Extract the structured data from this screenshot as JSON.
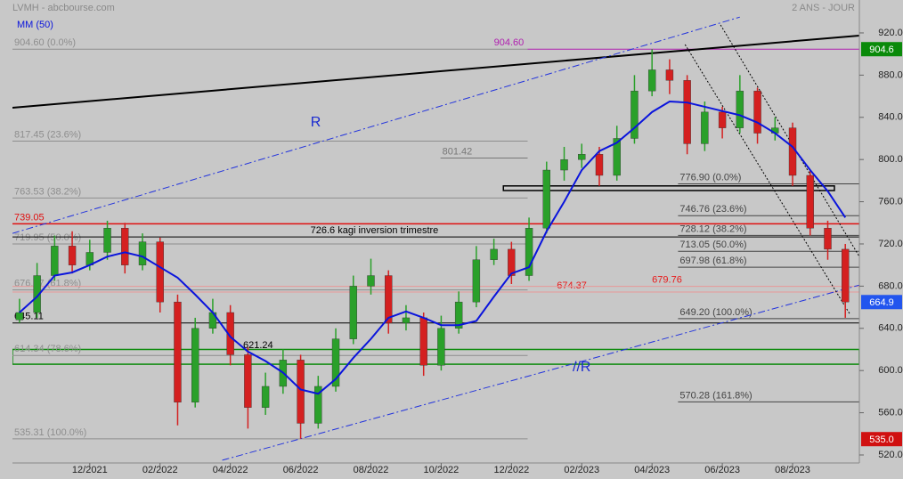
{
  "chart_data": {
    "type": "candlestick",
    "title": "LVMH - abcbourse.com",
    "subtitle": "2 ANS - JOUR",
    "xlim": [
      0,
      24.1
    ],
    "ylim": [
      512.4,
      951.2
    ],
    "xticks": [
      {
        "value": 2.2,
        "label": "12/2021"
      },
      {
        "value": 4.2,
        "label": "02/2022"
      },
      {
        "value": 6.2,
        "label": "04/2022"
      },
      {
        "value": 8.2,
        "label": "06/2022"
      },
      {
        "value": 10.2,
        "label": "08/2022"
      },
      {
        "value": 12.2,
        "label": "10/2022"
      },
      {
        "value": 14.2,
        "label": "12/2022"
      },
      {
        "value": 16.2,
        "label": "02/2023"
      },
      {
        "value": 18.2,
        "label": "04/2023"
      },
      {
        "value": 20.2,
        "label": "06/2023"
      },
      {
        "value": 22.2,
        "label": "08/2023"
      }
    ],
    "yticks": [
      {
        "value": 520,
        "label": "520.0"
      },
      {
        "value": 560,
        "label": "560.0"
      },
      {
        "value": 600,
        "label": "600.0"
      },
      {
        "value": 640,
        "label": "640.0"
      },
      {
        "value": 680,
        "label": "680.0"
      },
      {
        "value": 720,
        "label": "720.0"
      },
      {
        "value": 760,
        "label": "760.0"
      },
      {
        "value": 800,
        "label": "800.0"
      },
      {
        "value": 840,
        "label": "840.0"
      },
      {
        "value": 880,
        "label": "880.0"
      },
      {
        "value": 920,
        "label": "920.0"
      }
    ],
    "candles": {
      "up_color": "#2aa02a",
      "down_color": "#d42020",
      "x": [
        0.2,
        0.7,
        1.2,
        1.7,
        2.2,
        2.7,
        3.2,
        3.7,
        4.2,
        4.7,
        5.2,
        5.7,
        6.2,
        6.7,
        7.2,
        7.7,
        8.2,
        8.7,
        9.2,
        9.7,
        10.2,
        10.7,
        11.2,
        11.7,
        12.2,
        12.7,
        13.2,
        13.7,
        14.2,
        14.7,
        15.2,
        15.7,
        16.2,
        16.7,
        17.2,
        17.7,
        18.2,
        18.7,
        19.2,
        19.7,
        20.2,
        20.7,
        21.2,
        21.7,
        22.2,
        22.7,
        23.2,
        23.7
      ],
      "open": [
        648,
        655,
        690,
        718,
        700,
        712,
        735,
        700,
        722,
        665,
        570,
        640,
        655,
        615,
        565,
        585,
        610,
        550,
        585,
        630,
        680,
        690,
        645,
        650,
        605,
        640,
        665,
        705,
        715,
        690,
        735,
        790,
        800,
        805,
        785,
        820,
        865,
        885,
        875,
        815,
        845,
        830,
        865,
        825,
        830,
        785,
        735,
        715
      ],
      "high": [
        668,
        702,
        728,
        732,
        724,
        742,
        740,
        730,
        726,
        672,
        650,
        668,
        662,
        622,
        598,
        620,
        615,
        595,
        640,
        690,
        706,
        695,
        662,
        655,
        652,
        675,
        718,
        725,
        722,
        745,
        798,
        812,
        815,
        812,
        832,
        880,
        904.6,
        895,
        880,
        855,
        850,
        880,
        868,
        840,
        835,
        790,
        742,
        720
      ],
      "low": [
        645.11,
        650,
        685,
        692,
        695,
        705,
        692,
        695,
        655,
        548,
        565,
        635,
        605,
        545,
        558,
        578,
        535.31,
        545,
        580,
        625,
        672,
        635,
        638,
        595,
        600,
        635,
        660,
        700,
        682,
        685,
        730,
        780,
        792,
        775,
        780,
        815,
        860,
        862,
        805,
        808,
        820,
        825,
        815,
        818,
        775,
        728,
        705,
        650
      ],
      "close": [
        655,
        690,
        718,
        700,
        712,
        735,
        700,
        722,
        665,
        570,
        640,
        655,
        615,
        565,
        585,
        610,
        550,
        585,
        630,
        680,
        690,
        645,
        650,
        605,
        640,
        665,
        705,
        715,
        690,
        735,
        790,
        800,
        805,
        785,
        820,
        865,
        885,
        875,
        815,
        845,
        830,
        865,
        825,
        830,
        785,
        735,
        715,
        665
      ]
    },
    "ma": {
      "name": "MM (50)",
      "color": "#0a14dc",
      "values": [
        655,
        670,
        690,
        693,
        700,
        708,
        712,
        708,
        698,
        688,
        672,
        655,
        632,
        618,
        609,
        598,
        582,
        578,
        592,
        612,
        630,
        650,
        656,
        650,
        643,
        643,
        647,
        670,
        692,
        698,
        732,
        760,
        790,
        808,
        816,
        830,
        845,
        855,
        854,
        850,
        846,
        842,
        835,
        825,
        812,
        790,
        770,
        745
      ]
    },
    "levels": [
      {
        "value": 904.6,
        "label": "904.60 (0.0%)",
        "color": "#8e8e8e",
        "xrange": [
          0,
          14.66
        ]
      },
      {
        "value": 817.45,
        "label": "817.45 (23.6%)",
        "color": "#8e8e8e",
        "xrange": [
          0,
          14.66
        ]
      },
      {
        "value": 763.53,
        "label": "763.53 (38.2%)",
        "color": "#8e8e8e",
        "xrange": [
          0,
          14.66
        ]
      },
      {
        "value": 719.95,
        "label": "719.95 (50.0%)",
        "color": "#8e8e8e",
        "xrange": [
          0,
          14.66
        ]
      },
      {
        "value": 676.37,
        "label": "676.37 (61.8%)",
        "color": "#8e8e8e",
        "xrange": [
          0,
          14.66
        ]
      },
      {
        "value": 614.34,
        "label": "614.34 (78.6%)",
        "color": "#8e8e8e",
        "xrange": [
          0,
          14.66
        ]
      },
      {
        "value": 535.31,
        "label": "535.31 (100.0%)",
        "color": "#8e8e8e",
        "xrange": [
          0,
          14.66
        ]
      },
      {
        "value": 904.6,
        "label": "904.60",
        "color": "#b020b0",
        "xrange": [
          14.66,
          24.1
        ],
        "label_x": 13.7
      },
      {
        "value": 801.42,
        "label": "801.42",
        "color": "#777777",
        "xrange": [
          12.18,
          14.66
        ]
      },
      {
        "value": 776.9,
        "label": "776.90  (0.0%)",
        "color": "#444444",
        "xrange": [
          18.94,
          24.1
        ]
      },
      {
        "value": 746.76,
        "label": "746.76  (23.6%)",
        "color": "#444444",
        "xrange": [
          18.94,
          24.1
        ]
      },
      {
        "value": 728.12,
        "label": "728.12  (38.2%)",
        "color": "#444444",
        "xrange": [
          18.94,
          24.1
        ]
      },
      {
        "value": 713.05,
        "label": "713.05  (50.0%)",
        "color": "#444444",
        "xrange": [
          18.94,
          24.1
        ]
      },
      {
        "value": 697.98,
        "label": "697.98  (61.8%)",
        "color": "#444444",
        "xrange": [
          18.94,
          24.1
        ]
      },
      {
        "value": 649.2,
        "label": "649.20  (100.0%)",
        "color": "#444444",
        "xrange": [
          18.94,
          24.1
        ]
      },
      {
        "value": 570.28,
        "label": "570.28  (161.8%)",
        "color": "#444444",
        "xrange": [
          18.94,
          24.1
        ]
      },
      {
        "value": 739.05,
        "label": "739.05",
        "color": "#e01010",
        "xrange": [
          0,
          24.1
        ]
      },
      {
        "value": 726.6,
        "label": "726.6 kagi inversion trimestre",
        "color": "#000000",
        "xrange": [
          0,
          24.1
        ],
        "label_x": 8.48
      },
      {
        "value": 645.11,
        "label": "645.11",
        "color": "#000000",
        "xrange": [
          0,
          24.1
        ]
      },
      {
        "value": 674.37,
        "label": "674.37",
        "color": "#e81818",
        "xrange": [
          0,
          24.1
        ],
        "label_x": 15.49
      },
      {
        "value": 679.76,
        "label": "679.76",
        "color": "#e81818",
        "xrange": [
          0,
          24.1
        ],
        "label_x": 18.2
      }
    ],
    "zones": [
      {
        "range": [
          606,
          620
        ],
        "xrange": [
          0,
          24.1
        ],
        "color": "#0a8a0a"
      },
      {
        "range": [
          770.6,
          775
        ],
        "xrange": [
          13.97,
          23.39
        ],
        "color": "#000000"
      }
    ],
    "trendlines": [
      {
        "points": [
          [
            0,
            849.1
          ],
          [
            24.1,
            917.5
          ]
        ],
        "color": "#000000",
        "style": "solid"
      },
      {
        "points": [
          [
            0,
            730
          ],
          [
            20.7,
            935
          ]
        ],
        "color": "#2233dd",
        "style": "dashdot"
      },
      {
        "points": [
          [
            5.97,
            515
          ],
          [
            24.1,
            681
          ]
        ],
        "color": "#2233dd",
        "style": "dashdot"
      },
      {
        "points": [
          [
            20.15,
            927.6
          ],
          [
            24.1,
            708
          ]
        ],
        "color": "#000000",
        "style": "dotted"
      },
      {
        "points": [
          [
            19.14,
            909
          ],
          [
            23.82,
            654
          ]
        ],
        "color": "#000000",
        "style": "dotted"
      }
    ],
    "annotations": [
      {
        "text": "R",
        "x": 8.63,
        "y": 834.8,
        "color": "#1a2ad0"
      },
      {
        "text": "//R",
        "x": 16.2,
        "y": 602.7,
        "color": "#1a2ad0"
      },
      {
        "text": "621.24",
        "x": 6.99,
        "y": 623.8,
        "color": "#000000"
      }
    ],
    "price_tags": [
      {
        "value": 904.6,
        "color": "#0a8a0a"
      },
      {
        "value": 664.9,
        "color": "#2255ee"
      },
      {
        "value": 535,
        "label": "535.0",
        "color": "#d01010"
      }
    ]
  }
}
